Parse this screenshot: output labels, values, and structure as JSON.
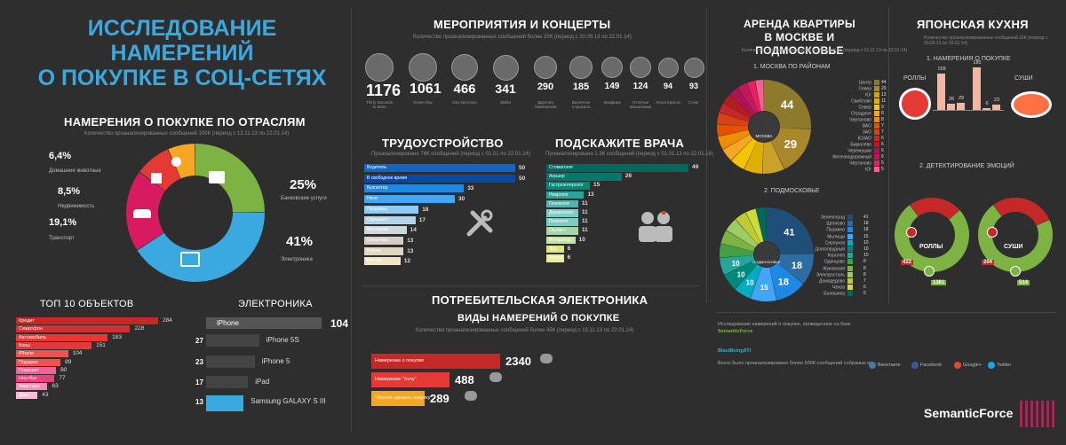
{
  "colors": {
    "accent_blue": "#3aa9e0",
    "red": "#c0392b",
    "green": "#7cb342",
    "orange": "#f5a623",
    "pink": "#d81b60",
    "dark": "#2e2e2e"
  },
  "main_title": {
    "line1": "ИССЛЕДОВАНИЕ НАМЕРЕНИЙ",
    "line2": "О ПОКУПКЕ В СОЦ-СЕТЯХ"
  },
  "industries": {
    "title": "НАМЕРЕНИЯ О ПОКУПКЕ ПО ОТРАСЛЯМ",
    "subtitle": "Количество проанализированных сообщений 100К (период с 13.11.13 по 22.01.14)"
  },
  "top10": {
    "title": "ТОП 10 ОБЪЕКТОВ"
  },
  "electronics_brands": {
    "title": "ЭЛЕКТРОНИКА"
  },
  "events": {
    "title": "МЕРОПРИЯТИЯ И КОНЦЕРТЫ",
    "subtitle": "Количество проанализированных сообщений более 20К (период с 20.09.13 по 22.01.14)"
  },
  "jobs": {
    "title": "ТРУДОУСТРОЙСТВО",
    "subtitle": "Проанализировано 76К сообщений (период с 01.01 по 22.01.14)"
  },
  "doctors": {
    "title": "ПОДСКАЖИТЕ ВРАЧА",
    "subtitle": "Проанализировано 1.3К сообщений (период с 01.01.13 по 22.01.14)"
  },
  "consumer": {
    "title": "ПОТРЕБИТЕЛЬСКАЯ ЭЛЕКТРОНИКА",
    "subtitle_title": "ВИДЫ НАМЕРЕНИЙ О ПОКУПКЕ",
    "subtitle": "Количество проанализированных сообщений более 45К (период с 13.11.13 по 22.01.14)"
  },
  "rent": {
    "title1": "АРЕНДА КВАРТИРЫ",
    "title2": "В МОСКВЕ И ПОДМОСКОВЬЕ",
    "subtitle": "Количество проанализированных сообщений 96 (период с 01.11.13 по 22.01.14)",
    "moscow_label": "1. МОСКВА ПО РАЙОНАМ",
    "region_label": "2. ПОДМОСКОВЬЕ",
    "moscow_center": "МОСКВА",
    "region_center": "ПОДМОСКОВЬЕ"
  },
  "japanese": {
    "title": "ЯПОНСКАЯ КУХНЯ",
    "subtitle": "Количество проанализированных сообщений 10К (период с 20.09.13 по 22.01.14)",
    "section1": "1. НАМЕРЕНИЯ О ПОКУПКЕ",
    "section2": "2. ДЕТЕКТИРОВАНИЕ ЭМОЦИЙ",
    "rolls": "РОЛЛЫ",
    "sushi": "СУШИ"
  },
  "footer": {
    "line1": "Исследование намерений о покупке, проведенное на базе",
    "brand1": "SemanticForce",
    "line2": "Ведение: ...",
    "brand2": "BlastBeingATI",
    "line3": "Всего было проанализировано более 500К сообщений собраных из",
    "networks": [
      "Вконтакте",
      "Facebook",
      "Google+",
      "Twitter"
    ],
    "logo": "SemanticForce"
  },
  "chart_data": [
    {
      "type": "pie",
      "id": "industries",
      "title": "НАМЕРЕНИЯ О ПОКУПКЕ ПО ОТРАСЛЯМ",
      "slices": [
        {
          "label": "Банковские услуги",
          "value": 25,
          "text": "25%",
          "color": "#7cb342"
        },
        {
          "label": "Электроника",
          "value": 41,
          "text": "41%",
          "color": "#3aa9e0"
        },
        {
          "label": "Транспорт",
          "value": 19.1,
          "text": "19,1%",
          "color": "#d81b60"
        },
        {
          "label": "Недвижимость",
          "value": 8.5,
          "text": "8,5%",
          "color": "#e53935"
        },
        {
          "label": "Домашние животные",
          "value": 6.4,
          "text": "6,4%",
          "color": "#f5a623"
        }
      ]
    },
    {
      "type": "bar",
      "id": "top10",
      "title": "ТОП 10 ОБЪЕКТОВ",
      "categories": [
        "Кредит",
        "Смартфон",
        "Автомобиль",
        "Визы",
        "iPhone",
        "Подарок",
        "Планшет",
        "Ноутбук",
        "Квартира",
        "Дом"
      ],
      "values": [
        284,
        228,
        183,
        151,
        104,
        89,
        80,
        77,
        63,
        43
      ]
    },
    {
      "type": "bar",
      "id": "electronics",
      "title": "ЭЛЕКТРОНИКА",
      "categories": [
        "iPhone",
        "iPhone 5S",
        "iPhone 5",
        "iPad",
        "Samsung GALAXY S III"
      ],
      "values": [
        104,
        27,
        23,
        17,
        13
      ]
    },
    {
      "type": "bar",
      "id": "events",
      "title": "МЕРОПРИЯТИЯ И КОНЦЕРТЫ",
      "categories": [
        "Thirty Seconds to Mars",
        "Green Day",
        "One Direction",
        "Skillet",
        "Джастин Тимберлейк",
        "Валентин Стрыкало",
        "Земфира",
        "Отпетые Мошенники",
        "Агата Кристи",
        "Стинг"
      ],
      "values": [
        1176,
        1061,
        466,
        341,
        290,
        185,
        149,
        124,
        94,
        93
      ]
    },
    {
      "type": "bar",
      "id": "jobs",
      "title": "ТРУДОУСТРОЙСТВО",
      "categories": [
        "Водитель",
        "В свободное время",
        "Бухгалтер",
        "Няня",
        "Продавец",
        "Официант",
        "Менеджер",
        "Секретарь",
        "Курьер",
        "Кассир"
      ],
      "values": [
        50,
        50,
        33,
        30,
        18,
        17,
        14,
        13,
        13,
        12
      ]
    },
    {
      "type": "bar",
      "id": "doctors",
      "title": "ПОДСКАЖИТЕ ВРАЧА",
      "categories": [
        "Стоматолог",
        "Акушер",
        "Гастроэнтеролог",
        "Невролог",
        "Гинеколог",
        "Дерматолог",
        "Психолог",
        "Окулист",
        "Ветеринар",
        "Лор",
        "Хирург"
      ],
      "values": [
        49,
        26,
        15,
        13,
        11,
        11,
        11,
        11,
        10,
        6,
        6
      ]
    },
    {
      "type": "bar",
      "id": "consumer",
      "title": "ВИДЫ НАМЕРЕНИЙ О ПОКУПКЕ",
      "categories": [
        "Намерение о покупке",
        "Намерение \"Хочу\"",
        "\"Хотите сделать покупку\""
      ],
      "values": [
        2340,
        488,
        289
      ]
    },
    {
      "type": "pie",
      "id": "moscow",
      "title": "1. МОСКВА ПО РАЙОНАМ",
      "categories": [
        "Центр",
        "Север",
        "Юг",
        "Свиблово",
        "Север",
        "Отрадное",
        "Чертаново",
        "ВАО",
        "ЗАО",
        "ЮЗАО",
        "Бирюлево",
        "Черемушки",
        "Железнодорожный",
        "Чертаново",
        "Юг"
      ],
      "values": [
        44,
        29,
        13,
        11,
        9,
        8,
        8,
        7,
        7,
        6,
        6,
        6,
        6,
        5,
        5
      ]
    },
    {
      "type": "pie",
      "id": "region",
      "title": "2. ПОДМОСКОВЬЕ",
      "categories": [
        "Зеленоград",
        "Щелково",
        "Пушкино",
        "Мытищи",
        "Серпухов",
        "Долгопрудный",
        "Королев",
        "Одинцово",
        "Жуковский",
        "Электросталь",
        "Домодедово",
        "Чехов",
        "Балашиха"
      ],
      "values": [
        41,
        18,
        18,
        15,
        10,
        10,
        10,
        8,
        8,
        8,
        7,
        6,
        6
      ]
    },
    {
      "type": "bar",
      "id": "japanese_intent",
      "title": "1. НАМЕРЕНИЯ О ПОКУПКЕ",
      "series": [
        {
          "name": "РОЛЛЫ",
          "values": [
            159,
            26,
            29
          ]
        },
        {
          "name": "СУШИ",
          "values": [
            185,
            6,
            23
          ]
        }
      ]
    },
    {
      "type": "pie",
      "id": "emotions",
      "title": "2. ДЕТЕКТИРОВАНИЕ ЭМОЦИЙ",
      "series": [
        {
          "name": "РОЛЛЫ",
          "values": [
            422,
            1381
          ]
        },
        {
          "name": "СУШИ",
          "values": [
            204,
            514
          ]
        }
      ]
    }
  ]
}
